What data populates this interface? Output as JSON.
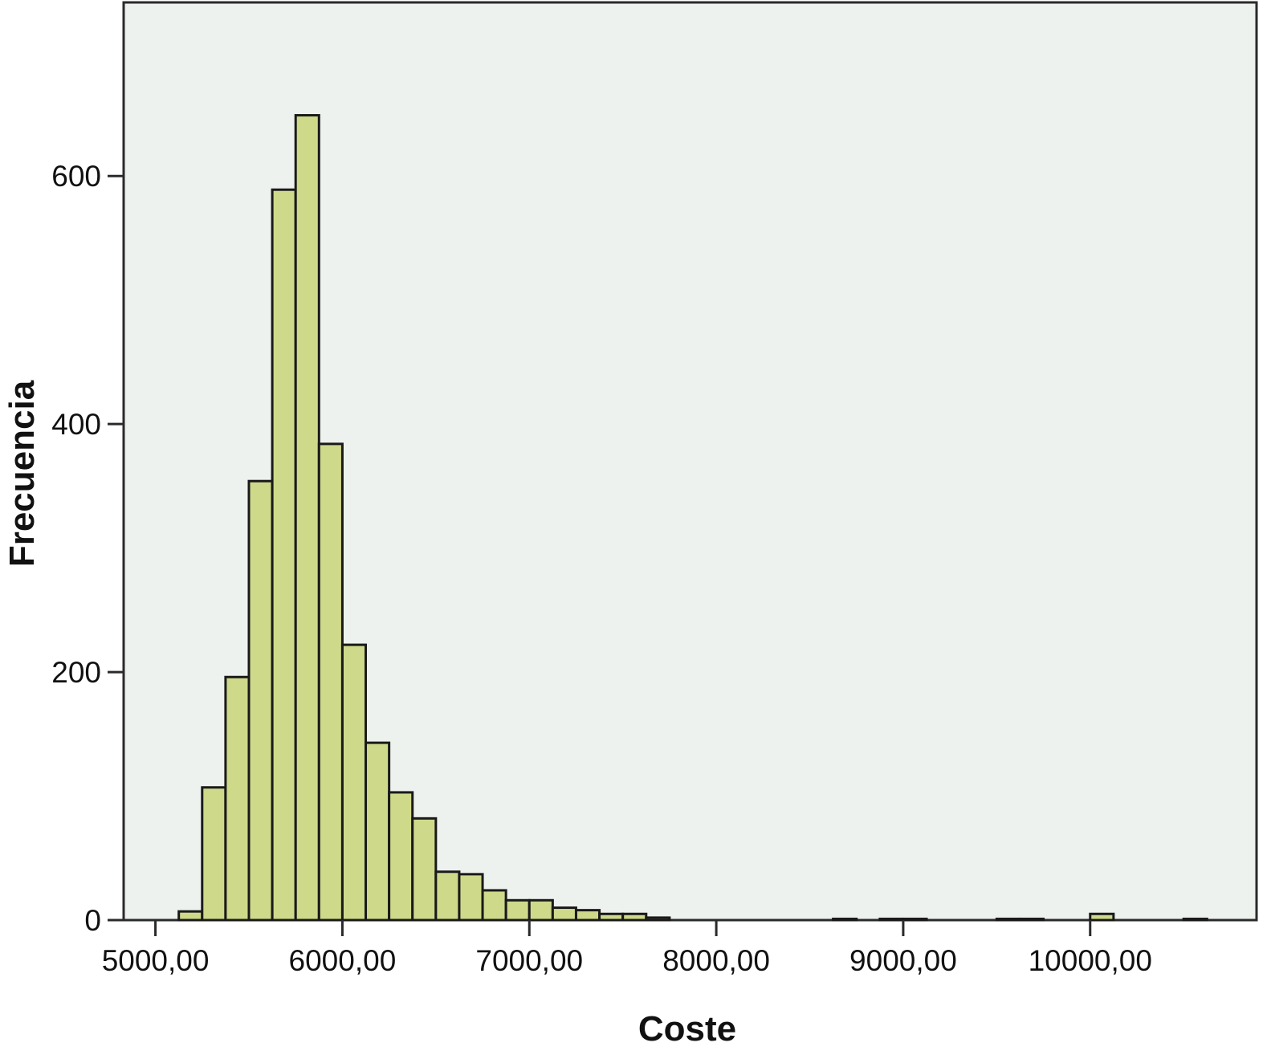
{
  "chart_data": {
    "type": "bar",
    "subtype": "histogram",
    "title": "",
    "xlabel": "Coste",
    "ylabel": "Frecuencia",
    "xlim": [
      4830,
      10890
    ],
    "ylim": [
      0,
      740
    ],
    "x_ticks": [
      {
        "value": 5000,
        "label": "5000,00"
      },
      {
        "value": 6000,
        "label": "6000,00"
      },
      {
        "value": 7000,
        "label": "7000,00"
      },
      {
        "value": 8000,
        "label": "8000,00"
      },
      {
        "value": 9000,
        "label": "9000,00"
      },
      {
        "value": 10000,
        "label": "10000,00"
      }
    ],
    "y_ticks": [
      {
        "value": 0,
        "label": "0"
      },
      {
        "value": 200,
        "label": "200"
      },
      {
        "value": 400,
        "label": "400"
      },
      {
        "value": 600,
        "label": "600"
      }
    ],
    "bin_width": 125,
    "bins": [
      {
        "start": 5125,
        "end": 5250,
        "count": 7
      },
      {
        "start": 5250,
        "end": 5375,
        "count": 107
      },
      {
        "start": 5375,
        "end": 5500,
        "count": 196
      },
      {
        "start": 5500,
        "end": 5625,
        "count": 354
      },
      {
        "start": 5625,
        "end": 5750,
        "count": 589
      },
      {
        "start": 5750,
        "end": 5875,
        "count": 649
      },
      {
        "start": 5875,
        "end": 6000,
        "count": 384
      },
      {
        "start": 6000,
        "end": 6125,
        "count": 222
      },
      {
        "start": 6125,
        "end": 6250,
        "count": 143
      },
      {
        "start": 6250,
        "end": 6375,
        "count": 103
      },
      {
        "start": 6375,
        "end": 6500,
        "count": 82
      },
      {
        "start": 6500,
        "end": 6625,
        "count": 39
      },
      {
        "start": 6625,
        "end": 6750,
        "count": 37
      },
      {
        "start": 6750,
        "end": 6875,
        "count": 24
      },
      {
        "start": 6875,
        "end": 7000,
        "count": 16
      },
      {
        "start": 7000,
        "end": 7125,
        "count": 16
      },
      {
        "start": 7125,
        "end": 7250,
        "count": 10
      },
      {
        "start": 7250,
        "end": 7375,
        "count": 8
      },
      {
        "start": 7375,
        "end": 7500,
        "count": 5
      },
      {
        "start": 7500,
        "end": 7625,
        "count": 5
      },
      {
        "start": 7625,
        "end": 7750,
        "count": 2
      },
      {
        "start": 8625,
        "end": 8750,
        "count": 1
      },
      {
        "start": 8875,
        "end": 9000,
        "count": 1
      },
      {
        "start": 9000,
        "end": 9125,
        "count": 1
      },
      {
        "start": 9500,
        "end": 9625,
        "count": 1
      },
      {
        "start": 9625,
        "end": 9750,
        "count": 1
      },
      {
        "start": 10000,
        "end": 10125,
        "count": 5
      },
      {
        "start": 10500,
        "end": 10625,
        "count": 1
      }
    ],
    "grid": false,
    "legend": "none",
    "colors": {
      "bar_fill": "#cfd98a",
      "bar_edge": "#1a1a1a",
      "plot_background": "#edf2ee",
      "axis": "#2a2a2a"
    }
  }
}
